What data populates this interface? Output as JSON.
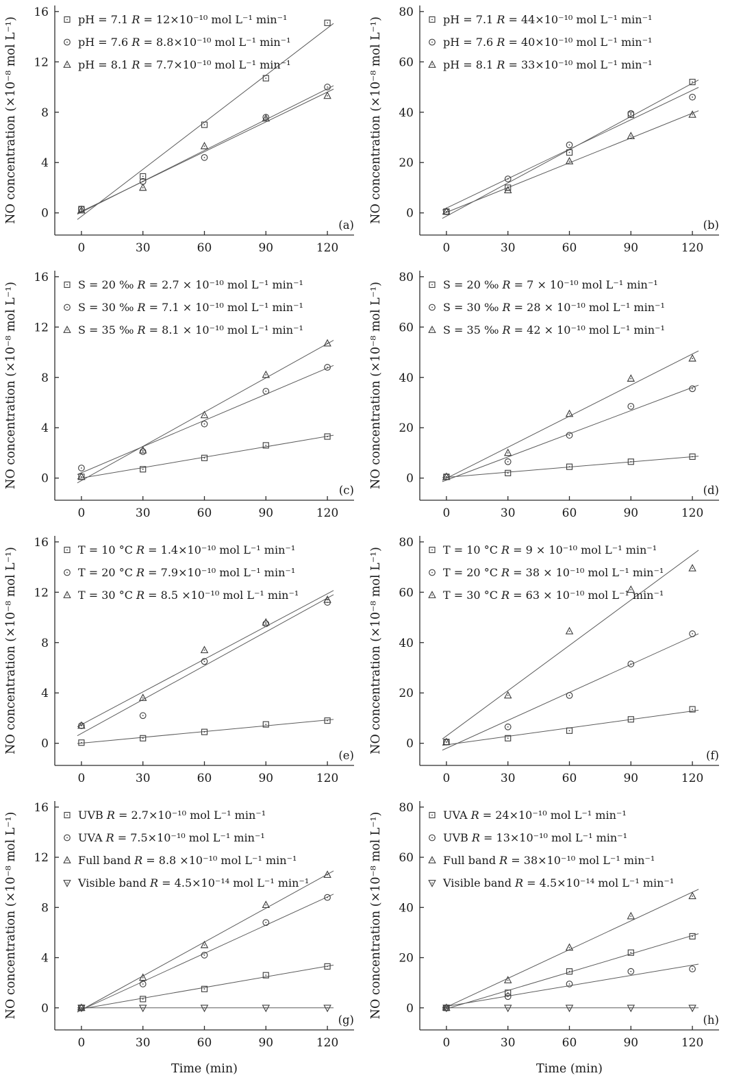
{
  "figure": {
    "background": "#ffffff",
    "axis_color": "#2b2b2b",
    "marker_color": "#3f3f3f",
    "fit_line_color": "#5a5a5a",
    "xlabel": "Time (min)",
    "ylabel": "NO concentration (×10⁻⁸ mol L⁻¹)"
  },
  "chart_data": [
    {
      "type": "scatter",
      "id": "a",
      "panel_label": "(a)",
      "xlabel": "",
      "ylabel": "NO concentration (×10⁻⁸ mol L⁻¹)",
      "x": [
        0,
        30,
        60,
        90,
        120
      ],
      "xticks": [
        0,
        30,
        60,
        90,
        120
      ],
      "ylim": [
        0,
        16
      ],
      "yticks": [
        0,
        4,
        8,
        12,
        16
      ],
      "legend_position": "top-left",
      "grid": false,
      "show_xlabel": false,
      "series": [
        {
          "name": "pH = 7.1 R = 12×10⁻¹⁰ mol L⁻¹ min⁻¹",
          "marker": "square",
          "values": [
            0.3,
            2.9,
            7.0,
            10.7,
            15.1
          ],
          "fit": true
        },
        {
          "name": "pH = 7.6 R = 8.8×10⁻¹⁰ mol L⁻¹ min⁻¹",
          "marker": "circle",
          "values": [
            0.3,
            2.5,
            4.4,
            7.6,
            10.0
          ],
          "fit": true
        },
        {
          "name": "pH = 8.1 R = 7.7×10⁻¹⁰ mol L⁻¹ min⁻¹",
          "marker": "triangle-up",
          "values": [
            0.2,
            2.0,
            5.3,
            7.5,
            9.3
          ],
          "fit": true
        }
      ]
    },
    {
      "type": "scatter",
      "id": "b",
      "panel_label": "(b)",
      "xlabel": "",
      "ylabel": "NO concentration (×10⁻⁸ mol L⁻¹)",
      "x": [
        0,
        30,
        60,
        90,
        120
      ],
      "xticks": [
        0,
        30,
        60,
        90,
        120
      ],
      "ylim": [
        0,
        80
      ],
      "yticks": [
        0,
        20,
        40,
        60,
        80
      ],
      "legend_position": "top-left",
      "grid": false,
      "show_xlabel": false,
      "series": [
        {
          "name": "pH = 7.1 R = 44×10⁻¹⁰ mol L⁻¹ min⁻¹",
          "marker": "square",
          "values": [
            0.5,
            10,
            24,
            39,
            52
          ],
          "fit": true
        },
        {
          "name": "pH = 7.6 R = 40×10⁻¹⁰ mol L⁻¹ min⁻¹",
          "marker": "circle",
          "values": [
            0.5,
            13.5,
            27,
            39.5,
            46
          ],
          "fit": true
        },
        {
          "name": "pH = 8.1 R = 33×10⁻¹⁰ mol L⁻¹ min⁻¹",
          "marker": "triangle-up",
          "values": [
            0.5,
            9,
            20.5,
            30.5,
            39
          ],
          "fit": true
        }
      ]
    },
    {
      "type": "scatter",
      "id": "c",
      "panel_label": "(c)",
      "xlabel": "",
      "ylabel": "NO concentration (×10⁻⁸ mol L⁻¹)",
      "x": [
        0,
        30,
        60,
        90,
        120
      ],
      "xticks": [
        0,
        30,
        60,
        90,
        120
      ],
      "ylim": [
        0,
        16
      ],
      "yticks": [
        0,
        4,
        8,
        12,
        16
      ],
      "legend_position": "top-left",
      "grid": false,
      "show_xlabel": false,
      "series": [
        {
          "name": "S = 20 ‰ R = 2.7 × 10⁻¹⁰ mol L⁻¹ min⁻¹",
          "marker": "square",
          "values": [
            0.1,
            0.7,
            1.6,
            2.6,
            3.3
          ],
          "fit": true
        },
        {
          "name": "S = 30 ‰ R = 7.1 × 10⁻¹⁰ mol L⁻¹ min⁻¹",
          "marker": "circle",
          "values": [
            0.8,
            2.1,
            4.3,
            6.9,
            8.8
          ],
          "fit": true
        },
        {
          "name": "S = 35 ‰ R = 8.1 × 10⁻¹⁰ mol L⁻¹ min⁻¹",
          "marker": "triangle-up",
          "values": [
            0.1,
            2.2,
            5.0,
            8.2,
            10.7
          ],
          "fit": true
        }
      ]
    },
    {
      "type": "scatter",
      "id": "d",
      "panel_label": "(d)",
      "xlabel": "",
      "ylabel": "NO concentration (×10⁻⁸ mol L⁻¹)",
      "x": [
        0,
        30,
        60,
        90,
        120
      ],
      "xticks": [
        0,
        30,
        60,
        90,
        120
      ],
      "ylim": [
        0,
        80
      ],
      "yticks": [
        0,
        20,
        40,
        60,
        80
      ],
      "legend_position": "top-left",
      "grid": false,
      "show_xlabel": false,
      "series": [
        {
          "name": "S = 20 ‰ R = 7 × 10⁻¹⁰ mol L⁻¹ min⁻¹",
          "marker": "square",
          "values": [
            0.5,
            2,
            4.5,
            6.5,
            8.5
          ],
          "fit": true
        },
        {
          "name": "S = 30 ‰ R = 28 × 10⁻¹⁰ mol L⁻¹ min⁻¹",
          "marker": "circle",
          "values": [
            0.5,
            6.5,
            17,
            28.5,
            35.5
          ],
          "fit": true
        },
        {
          "name": "S = 35 ‰ R = 42 × 10⁻¹⁰ mol L⁻¹ min⁻¹",
          "marker": "triangle-up",
          "values": [
            0.5,
            10,
            25.5,
            39.5,
            47.5
          ],
          "fit": true
        }
      ]
    },
    {
      "type": "scatter",
      "id": "e",
      "panel_label": "(e)",
      "xlabel": "",
      "ylabel": "NO concentration (×10⁻⁸ mol L⁻¹)",
      "x": [
        0,
        30,
        60,
        90,
        120
      ],
      "xticks": [
        0,
        30,
        60,
        90,
        120
      ],
      "ylim": [
        0,
        16
      ],
      "yticks": [
        0,
        4,
        8,
        12,
        16
      ],
      "legend_position": "top-left",
      "grid": false,
      "show_xlabel": false,
      "series": [
        {
          "name": "T = 10 °C R = 1.4×10⁻¹⁰ mol L⁻¹ min⁻¹",
          "marker": "square",
          "values": [
            0.05,
            0.4,
            0.9,
            1.5,
            1.8
          ],
          "fit": true
        },
        {
          "name": "T = 20 °C R = 7.9×10⁻¹⁰ mol L⁻¹ min⁻¹",
          "marker": "circle",
          "values": [
            1.4,
            2.2,
            6.5,
            9.5,
            11.2
          ],
          "fit": true
        },
        {
          "name": "T = 30 °C R = 8.5 ×10⁻¹⁰ mol L⁻¹ min⁻¹",
          "marker": "triangle-up",
          "values": [
            1.4,
            3.6,
            7.4,
            9.6,
            11.4
          ],
          "fit": true
        }
      ]
    },
    {
      "type": "scatter",
      "id": "f",
      "panel_label": "(f)",
      "xlabel": "",
      "ylabel": "NO concentration (×10⁻⁸ mol L⁻¹)",
      "x": [
        0,
        30,
        60,
        90,
        120
      ],
      "xticks": [
        0,
        30,
        60,
        90,
        120
      ],
      "ylim": [
        0,
        80
      ],
      "yticks": [
        0,
        20,
        40,
        60,
        80
      ],
      "legend_position": "top-left",
      "grid": false,
      "show_xlabel": false,
      "series": [
        {
          "name": "T = 10 °C R = 9 × 10⁻¹⁰ mol L⁻¹ min⁻¹",
          "marker": "square",
          "values": [
            0.5,
            2,
            5,
            9.5,
            13.5
          ],
          "fit": true
        },
        {
          "name": "T = 20 °C R = 38 × 10⁻¹⁰ mol L⁻¹ min⁻¹",
          "marker": "circle",
          "values": [
            0.5,
            6.5,
            19,
            31.5,
            43.5
          ],
          "fit": true
        },
        {
          "name": "T = 30 °C R = 63 × 10⁻¹⁰ mol L⁻¹ min⁻¹",
          "marker": "triangle-up",
          "values": [
            0.5,
            19,
            44.5,
            61,
            69.5
          ],
          "fit": true
        }
      ]
    },
    {
      "type": "scatter",
      "id": "g",
      "panel_label": "(g)",
      "xlabel": "Time (min)",
      "ylabel": "NO concentration (×10⁻⁸ mol L⁻¹)",
      "x": [
        0,
        30,
        60,
        90,
        120
      ],
      "xticks": [
        0,
        30,
        60,
        90,
        120
      ],
      "ylim": [
        0,
        16
      ],
      "yticks": [
        0,
        4,
        8,
        12,
        16
      ],
      "legend_position": "top-left",
      "grid": false,
      "show_xlabel": true,
      "series": [
        {
          "name": "UVB R = 2.7×10⁻¹⁰ mol L⁻¹ min⁻¹",
          "marker": "square",
          "values": [
            0,
            0.7,
            1.5,
            2.6,
            3.3
          ],
          "fit": true
        },
        {
          "name": "UVA R = 7.5×10⁻¹⁰ mol L⁻¹ min⁻¹",
          "marker": "circle",
          "values": [
            0,
            1.9,
            4.2,
            6.8,
            8.8
          ],
          "fit": true
        },
        {
          "name": "Full band R = 8.8 ×10⁻¹⁰ mol L⁻¹ min⁻¹",
          "marker": "triangle-up",
          "values": [
            0,
            2.4,
            5.0,
            8.2,
            10.6
          ],
          "fit": true
        },
        {
          "name": "Visible band R = 4.5×10⁻¹⁴ mol L⁻¹ min⁻¹",
          "marker": "triangle-down",
          "values": [
            0,
            0,
            0,
            0,
            0
          ],
          "fit": true
        }
      ]
    },
    {
      "type": "scatter",
      "id": "h",
      "panel_label": "(h)",
      "xlabel": "Time (min)",
      "ylabel": "NO concentration (×10⁻⁸ mol L⁻¹)",
      "x": [
        0,
        30,
        60,
        90,
        120
      ],
      "xticks": [
        0,
        30,
        60,
        90,
        120
      ],
      "ylim": [
        0,
        80
      ],
      "yticks": [
        0,
        20,
        40,
        60,
        80
      ],
      "legend_position": "top-left",
      "grid": false,
      "show_xlabel": true,
      "series": [
        {
          "name": "UVA R = 24×10⁻¹⁰ mol L⁻¹ min⁻¹",
          "marker": "square",
          "values": [
            0,
            6,
            14.5,
            22,
            28.5
          ],
          "fit": true
        },
        {
          "name": "UVB R = 13×10⁻¹⁰ mol L⁻¹ min⁻¹",
          "marker": "circle",
          "values": [
            0,
            4.5,
            9.5,
            14.5,
            15.5
          ],
          "fit": true
        },
        {
          "name": "Full band R = 38×10⁻¹⁰ mol L⁻¹ min⁻¹",
          "marker": "triangle-up",
          "values": [
            0,
            11,
            24,
            36.5,
            44.5
          ],
          "fit": true
        },
        {
          "name": "Visible band R = 4.5×10⁻¹⁴ mol L⁻¹ min⁻¹",
          "marker": "triangle-down",
          "values": [
            0,
            0,
            0,
            0,
            0
          ],
          "fit": true
        }
      ]
    }
  ]
}
